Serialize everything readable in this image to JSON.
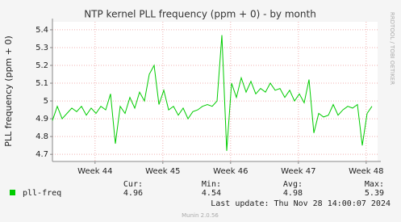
{
  "chart_data": {
    "type": "line",
    "title": "NTP kernel PLL frequency (ppm + 0) - by month",
    "y_label": "PLL frequency (ppm + 0)",
    "side_note": "RRDTOOL / TOBI OETIKER",
    "x": [
      0,
      0.5,
      1,
      1.5,
      2,
      2.5,
      3,
      3.5,
      4,
      4.5,
      5,
      5.5,
      6,
      6.5,
      7,
      7.5,
      8,
      8.5,
      9,
      9.5,
      10,
      10.5,
      11,
      11.5,
      12,
      12.5,
      13,
      13.5,
      14,
      14.5,
      15,
      15.5,
      16,
      16.5,
      17,
      17.5,
      18,
      18.5,
      19,
      19.5,
      20,
      20.5,
      21,
      21.5,
      22,
      22.5,
      23,
      23.5,
      24,
      24.5,
      25,
      25.5,
      26,
      26.5,
      27,
      27.5,
      28,
      28.5,
      29,
      29.5,
      30,
      30.5,
      31,
      31.5,
      32,
      32.5,
      33
    ],
    "series": [
      {
        "name": "pll-freq",
        "color": "#00cc00",
        "values": [
          4.89,
          4.97,
          4.9,
          4.93,
          4.96,
          4.94,
          4.97,
          4.92,
          4.96,
          4.93,
          4.97,
          4.95,
          5.04,
          4.76,
          4.97,
          4.93,
          5.02,
          4.96,
          5.05,
          5.0,
          5.15,
          5.2,
          4.98,
          5.06,
          4.95,
          4.97,
          4.92,
          4.96,
          4.9,
          4.94,
          4.95,
          4.97,
          4.98,
          4.97,
          5.0,
          5.37,
          4.72,
          5.1,
          5.02,
          5.13,
          5.05,
          5.11,
          5.04,
          5.07,
          5.05,
          5.1,
          5.06,
          5.07,
          5.02,
          5.06,
          5.0,
          5.04,
          4.99,
          5.12,
          4.82,
          4.93,
          4.91,
          4.92,
          4.98,
          4.92,
          4.95,
          4.97,
          4.96,
          4.98,
          4.75,
          4.93,
          4.97
        ]
      }
    ],
    "xlim": [
      0,
      33.58
    ],
    "xticks": [
      {
        "value": 4.4,
        "label": "Week 44"
      },
      {
        "value": 11.4,
        "label": "Week 45"
      },
      {
        "value": 18.4,
        "label": "Week 46"
      },
      {
        "value": 25.4,
        "label": "Week 47"
      },
      {
        "value": 32.4,
        "label": "Week 48"
      }
    ],
    "ylim": [
      4.66,
      5.445
    ],
    "yticks": [
      4.7,
      4.8,
      4.9,
      5.0,
      5.1,
      5.2,
      5.3,
      5.4
    ],
    "grid": true,
    "stats": {
      "headers": [
        "Cur:",
        "Min:",
        "Avg:",
        "Max:"
      ],
      "values": [
        4.96,
        4.54,
        4.98,
        5.39
      ]
    },
    "last_update": "Last update: Thu Nov 28 14:00:07 2024",
    "footer": "Munin 2.0.56"
  }
}
